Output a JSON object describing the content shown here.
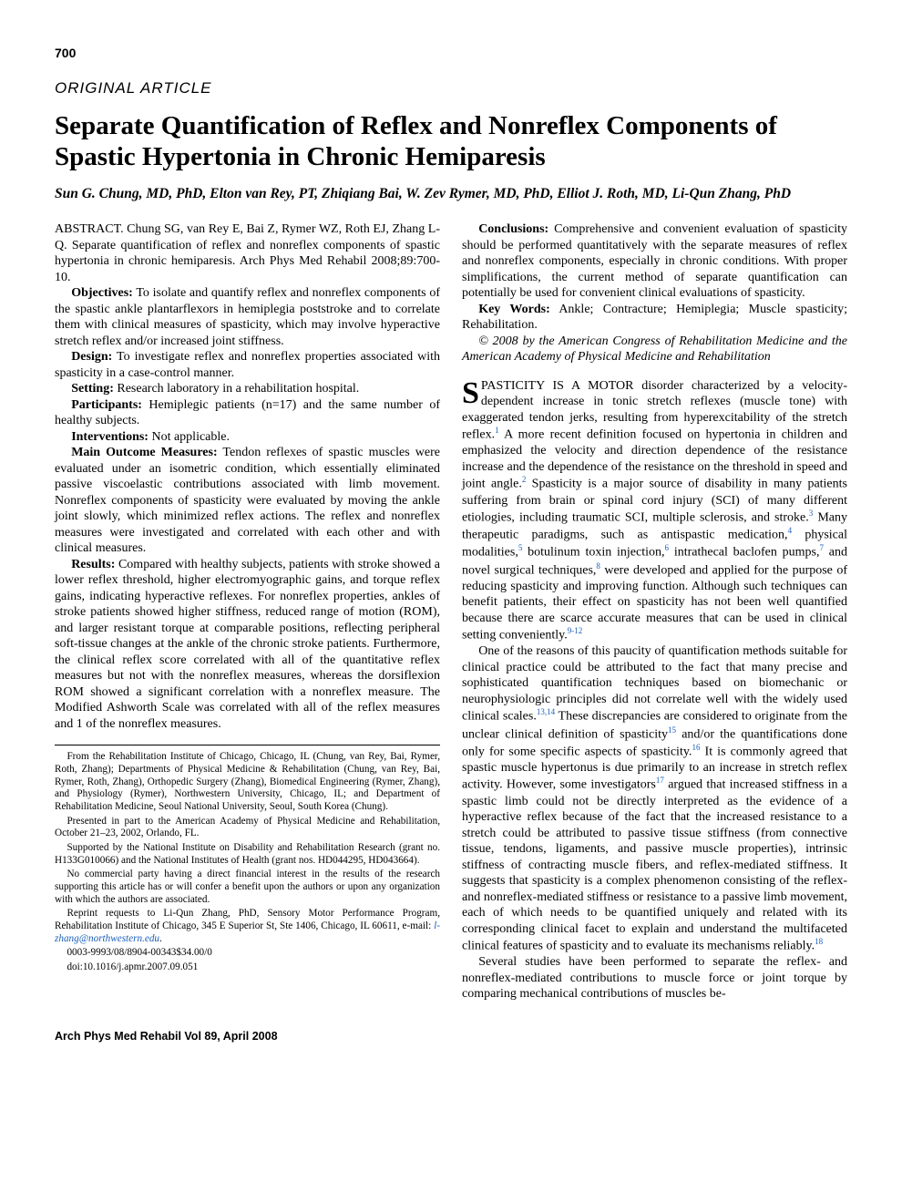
{
  "page_number": "700",
  "article_type": "ORIGINAL ARTICLE",
  "title": "Separate Quantification of Reflex and Nonreflex Components of Spastic Hypertonia in Chronic Hemiparesis",
  "authors": "Sun G. Chung, MD, PhD, Elton van Rey, PT, Zhiqiang Bai, W. Zev Rymer, MD, PhD, Elliot J. Roth, MD, Li-Qun Zhang, PhD",
  "citation": "ABSTRACT. Chung SG, van Rey E, Bai Z, Rymer WZ, Roth EJ, Zhang L-Q. Separate quantification of reflex and nonreflex components of spastic hypertonia in chronic hemiparesis. Arch Phys Med Rehabil 2008;89:700-10.",
  "abstract": {
    "objectives_label": "Objectives:",
    "objectives": " To isolate and quantify reflex and nonreflex components of the spastic ankle plantarflexors in hemiplegia poststroke and to correlate them with clinical measures of spasticity, which may involve hyperactive stretch reflex and/or increased joint stiffness.",
    "design_label": "Design:",
    "design": " To investigate reflex and nonreflex properties associated with spasticity in a case-control manner.",
    "setting_label": "Setting:",
    "setting": " Research laboratory in a rehabilitation hospital.",
    "participants_label": "Participants:",
    "participants": " Hemiplegic patients (n=17) and the same number of healthy subjects.",
    "interventions_label": "Interventions:",
    "interventions": " Not applicable.",
    "outcome_label": "Main Outcome Measures:",
    "outcome": " Tendon reflexes of spastic muscles were evaluated under an isometric condition, which essentially eliminated passive viscoelastic contributions associated with limb movement. Nonreflex components of spasticity were evaluated by moving the ankle joint slowly, which minimized reflex actions. The reflex and nonreflex measures were investigated and correlated with each other and with clinical measures.",
    "results_label": "Results:",
    "results": " Compared with healthy subjects, patients with stroke showed a lower reflex threshold, higher electromyographic gains, and torque reflex gains, indicating hyperactive reflexes. For nonreflex properties, ankles of stroke patients showed higher stiffness, reduced range of motion (ROM), and larger resistant torque at comparable positions, reflecting peripheral soft-tissue changes at the ankle of the chronic stroke patients. Furthermore, the clinical reflex score correlated with all of the quantitative reflex measures but not with the nonreflex measures, whereas the dorsiflexion ROM showed a significant correlation with a nonreflex measure. The Modified Ashworth Scale was correlated with all of the reflex measures and 1 of the nonreflex measures.",
    "conclusions_label": "Conclusions:",
    "conclusions": " Comprehensive and convenient evaluation of spasticity should be performed quantitatively with the separate measures of reflex and nonreflex components, especially in chronic conditions. With proper simplifications, the current method of separate quantification can potentially be used for convenient clinical evaluations of spasticity.",
    "keywords_label": "Key Words:",
    "keywords": " Ankle; Contracture; Hemiplegia; Muscle spasticity; Rehabilitation.",
    "copyright": "© 2008 by the American Congress of Rehabilitation Medicine and the American Academy of Physical Medicine and Rehabilitation"
  },
  "body": {
    "p1_a": "SPASTICITY IS A MOTOR disorder characterized by a velocity-dependent increase in tonic stretch reflexes (muscle tone) with exaggerated tendon jerks, resulting from hyperexcitability of the stretch reflex.",
    "p1_b": " A more recent definition focused on hypertonia in children and emphasized the velocity and direction dependence of the resistance increase and the dependence of the resistance on the threshold in speed and joint angle.",
    "p1_c": " Spasticity is a major source of disability in many patients suffering from brain or spinal cord injury (SCI) of many different etiologies, including traumatic SCI, multiple sclerosis, and stroke.",
    "p1_d": " Many therapeutic paradigms, such as antispastic medication,",
    "p1_e": " physical modalities,",
    "p1_f": " botulinum toxin injection,",
    "p1_g": " intrathecal baclofen pumps,",
    "p1_h": " and novel surgical techniques,",
    "p1_i": " were developed and applied for the purpose of reducing spasticity and improving function. Although such techniques can benefit patients, their effect on spasticity has not been well quantified because there are scarce accurate measures that can be used in clinical setting conveniently.",
    "p2_a": "One of the reasons of this paucity of quantification methods suitable for clinical practice could be attributed to the fact that many precise and sophisticated quantification techniques based on biomechanic or neurophysiologic principles did not correlate well with the widely used clinical scales.",
    "p2_b": " These discrepancies are considered to originate from the unclear clinical definition of spasticity",
    "p2_c": " and/or the quantifications done only for some specific aspects of spasticity.",
    "p2_d": " It is commonly agreed that spastic muscle hypertonus is due primarily to an increase in stretch reflex activity. However, some investigators",
    "p2_e": " argued that increased stiffness in a spastic limb could not be directly interpreted as the evidence of a hyperactive reflex because of the fact that the increased resistance to a stretch could be attributed to passive tissue stiffness (from connective tissue, tendons, ligaments, and passive muscle properties), intrinsic stiffness of contracting muscle fibers, and reflex-mediated stiffness. It suggests that spasticity is a complex phenomenon consisting of the reflex- and nonreflex-mediated stiffness or resistance to a passive limb movement, each of which needs to be quantified uniquely and related with its corresponding clinical facet to explain and understand the multifaceted clinical features of spasticity and to evaluate its mechanisms reliably.",
    "p3": "Several studies have been performed to separate the reflex- and nonreflex-mediated contributions to muscle force or joint torque by comparing mechanical contributions of muscles be-",
    "refs": {
      "r1": "1",
      "r2": "2",
      "r3": "3",
      "r4": "4",
      "r5": "5",
      "r6": "6",
      "r7": "7",
      "r8": "8",
      "r9_12": "9-12",
      "r13_14": "13,14",
      "r15": "15",
      "r16": "16",
      "r17": "17",
      "r18": "18"
    }
  },
  "footnotes": {
    "f1": "From the Rehabilitation Institute of Chicago, Chicago, IL (Chung, van Rey, Bai, Rymer, Roth, Zhang); Departments of Physical Medicine & Rehabilitation (Chung, van Rey, Bai, Rymer, Roth, Zhang), Orthopedic Surgery (Zhang), Biomedical Engineering (Rymer, Zhang), and Physiology (Rymer), Northwestern University, Chicago, IL; and Department of Rehabilitation Medicine, Seoul National University, Seoul, South Korea (Chung).",
    "f2": "Presented in part to the American Academy of Physical Medicine and Rehabilitation, October 21–23, 2002, Orlando, FL.",
    "f3": "Supported by the National Institute on Disability and Rehabilitation Research (grant no. H133G010066) and the National Institutes of Health (grant nos. HD044295, HD043664).",
    "f4": "No commercial party having a direct financial interest in the results of the research supporting this article has or will confer a benefit upon the authors or upon any organization with which the authors are associated.",
    "f5_a": "Reprint requests to Li-Qun Zhang, PhD, Sensory Motor Performance Program, Rehabilitation Institute of Chicago, 345 E Superior St, Ste 1406, Chicago, IL 60611, e-mail: ",
    "f5_link": "l-zhang@northwestern.edu",
    "f5_b": ".",
    "f6": "0003-9993/08/8904-00343$34.00/0",
    "f7": "doi:10.1016/j.apmr.2007.09.051"
  },
  "journal_footer": "Arch Phys Med Rehabil Vol 89, April 2008"
}
